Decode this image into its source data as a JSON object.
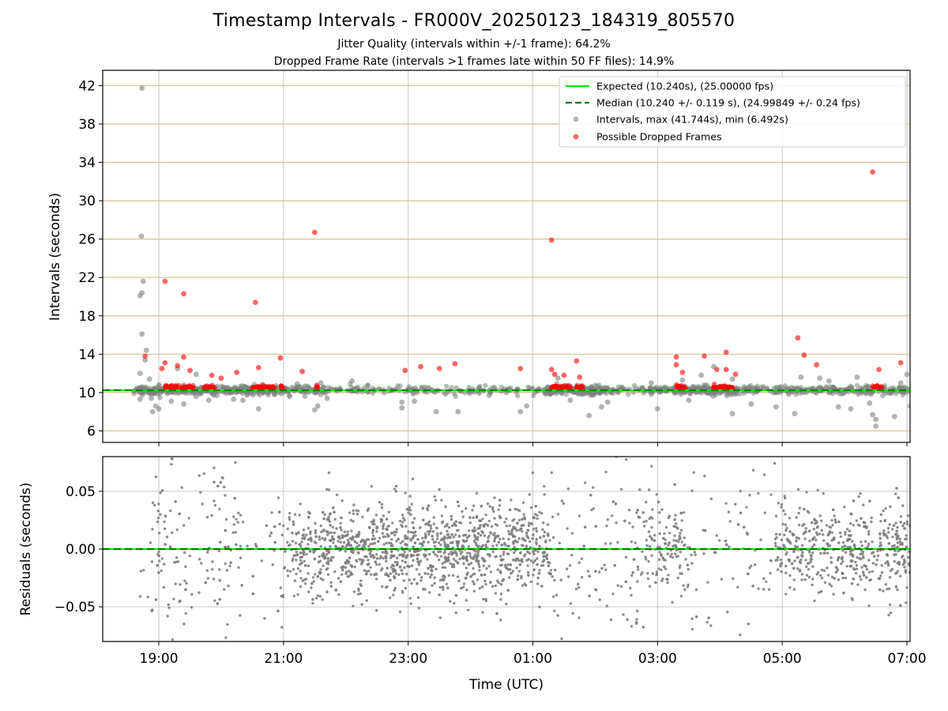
{
  "title": "Timestamp Intervals - FR000V_20250123_184319_805570",
  "subtitle1": "Jitter Quality (intervals within +/-1 frame): 64.2%",
  "subtitle2": "Dropped Frame Rate (intervals >1 frames late within 50 FF files): 14.9%",
  "colors": {
    "expected": "#00ee00",
    "median": "#008000",
    "intervals": "#808080",
    "dropped": "#ff0000",
    "hgrid_top": "#d4c38a",
    "grid": "#c8c8c8"
  },
  "chart_data": [
    {
      "type": "scatter",
      "ylabel": "Intervals (seconds)",
      "xlabel": "",
      "ylim": [
        4.8,
        43.6
      ],
      "xlim_hours": [
        18.1,
        31.05
      ],
      "yticks": [
        6,
        10,
        14,
        18,
        22,
        26,
        30,
        34,
        38,
        42
      ],
      "grid": true,
      "legend_position": "top-right",
      "legend": [
        "Expected (10.240s), (25.00000 fps)",
        "Median (10.240 +/- 0.119 s), (24.99849 +/- 0.24 fps)",
        "Intervals, max (41.744s), min (6.492s)",
        "Possible Dropped Frames"
      ],
      "expected_line": 10.24,
      "median_line": 10.24,
      "series": [
        {
          "name": "Intervals, max (41.744s), min (6.492s)",
          "points": [
            [
              18.73,
              41.74
            ],
            [
              18.72,
              26.3
            ],
            [
              18.7,
              20.1
            ],
            [
              18.73,
              20.4
            ],
            [
              18.75,
              21.6
            ],
            [
              18.73,
              16.1
            ],
            [
              18.8,
              14.4
            ],
            [
              18.78,
              13.4
            ],
            [
              18.7,
              12.0
            ],
            [
              18.85,
              11.4
            ],
            [
              18.9,
              8.0
            ],
            [
              18.95,
              8.6
            ],
            [
              19.0,
              8.3
            ],
            [
              18.88,
              9.4
            ],
            [
              18.7,
              9.3
            ],
            [
              19.2,
              9.1
            ],
            [
              19.4,
              8.8
            ],
            [
              19.6,
              9.6
            ],
            [
              19.8,
              9.2
            ],
            [
              20.2,
              9.3
            ],
            [
              20.35,
              9.2
            ],
            [
              20.6,
              8.3
            ],
            [
              20.85,
              9.8
            ],
            [
              21.1,
              9.6
            ],
            [
              21.22,
              10.9
            ],
            [
              21.5,
              8.2
            ],
            [
              21.55,
              8.6
            ],
            [
              21.6,
              11.0
            ],
            [
              21.7,
              9.4
            ],
            [
              22.1,
              11.2
            ],
            [
              22.9,
              8.4
            ],
            [
              22.9,
              9.0
            ],
            [
              23.1,
              9.1
            ],
            [
              23.45,
              8.0
            ],
            [
              23.8,
              8.0
            ],
            [
              24.3,
              9.7
            ],
            [
              24.8,
              8.0
            ],
            [
              24.9,
              8.6
            ],
            [
              25.4,
              11.5
            ],
            [
              25.6,
              9.2
            ],
            [
              25.9,
              7.6
            ],
            [
              26.1,
              8.5
            ],
            [
              26.2,
              9.0
            ],
            [
              26.9,
              11.0
            ],
            [
              27.0,
              8.3
            ],
            [
              27.5,
              9.2
            ],
            [
              27.9,
              12.7
            ],
            [
              28.2,
              7.8
            ],
            [
              28.5,
              8.8
            ],
            [
              28.9,
              8.5
            ],
            [
              29.2,
              7.8
            ],
            [
              29.6,
              11.5
            ],
            [
              29.9,
              8.5
            ],
            [
              30.1,
              8.3
            ],
            [
              30.4,
              8.9
            ],
            [
              30.45,
              7.7
            ],
            [
              30.5,
              6.5
            ],
            [
              30.5,
              7.2
            ],
            [
              30.8,
              7.5
            ],
            [
              31.0,
              11.9
            ],
            [
              31.05,
              8.6
            ],
            [
              30.9,
              11.0
            ],
            [
              30.2,
              11.6
            ],
            [
              29.75,
              11.2
            ],
            [
              29.3,
              11.6
            ],
            [
              28.2,
              11.4
            ],
            [
              27.7,
              11.8
            ],
            [
              27.4,
              11.3
            ],
            [
              19.3,
              12.5
            ],
            [
              19.6,
              11.9
            ]
          ]
        },
        {
          "name": "Possible Dropped Frames",
          "points": [
            [
              18.78,
              13.8
            ],
            [
              19.1,
              21.6
            ],
            [
              19.05,
              12.5
            ],
            [
              19.1,
              13.1
            ],
            [
              19.3,
              12.8
            ],
            [
              19.4,
              20.3
            ],
            [
              19.4,
              13.7
            ],
            [
              19.5,
              12.3
            ],
            [
              19.85,
              11.8
            ],
            [
              20.0,
              11.5
            ],
            [
              20.25,
              12.1
            ],
            [
              20.55,
              19.4
            ],
            [
              20.6,
              12.6
            ],
            [
              20.95,
              13.6
            ],
            [
              21.3,
              12.2
            ],
            [
              21.5,
              26.7
            ],
            [
              22.95,
              12.3
            ],
            [
              23.2,
              12.7
            ],
            [
              23.5,
              12.5
            ],
            [
              23.75,
              13.0
            ],
            [
              24.8,
              12.5
            ],
            [
              25.3,
              25.9
            ],
            [
              25.3,
              12.4
            ],
            [
              25.35,
              11.9
            ],
            [
              25.5,
              11.8
            ],
            [
              25.7,
              13.3
            ],
            [
              25.75,
              11.6
            ],
            [
              27.3,
              13.7
            ],
            [
              27.3,
              12.9
            ],
            [
              27.4,
              12.1
            ],
            [
              27.75,
              13.8
            ],
            [
              27.95,
              12.4
            ],
            [
              28.1,
              14.2
            ],
            [
              28.1,
              12.4
            ],
            [
              28.25,
              11.9
            ],
            [
              29.25,
              15.7
            ],
            [
              29.35,
              13.9
            ],
            [
              29.55,
              12.9
            ],
            [
              30.45,
              33.0
            ],
            [
              30.55,
              12.4
            ],
            [
              30.9,
              13.1
            ]
          ]
        }
      ]
    },
    {
      "type": "scatter",
      "ylabel": "Residuals (seconds)",
      "xlabel": "Time (UTC)",
      "ylim": [
        -0.08,
        0.08
      ],
      "yticks": [
        0.05,
        0.0,
        -0.05
      ],
      "ytick_labels": [
        "0.05",
        "0.00",
        "−0.05"
      ],
      "xticks_hours": [
        19,
        21,
        23,
        25,
        27,
        29,
        31
      ],
      "xtick_labels": [
        "19:00",
        "21:00",
        "23:00",
        "01:00",
        "03:00",
        "05:00",
        "07:00"
      ],
      "grid": true,
      "expected_line": 0.0,
      "median_line": 0.0,
      "series": [
        {
          "name": "",
          "generated": "dense residual cloud, approx 2500 points, sd about 0.02 s",
          "density_profile": [
            [
              18.7,
              0.2
            ],
            [
              19.0,
              0.5
            ],
            [
              20.0,
              0.6
            ],
            [
              20.7,
              0.3
            ],
            [
              20.9,
              0.35
            ],
            [
              21.2,
              1.2
            ],
            [
              22.0,
              1.6
            ],
            [
              23.5,
              1.7
            ],
            [
              25.0,
              1.6
            ],
            [
              25.4,
              0.4
            ],
            [
              26.5,
              0.3
            ],
            [
              26.9,
              1.0
            ],
            [
              27.4,
              1.1
            ],
            [
              27.6,
              0.25
            ],
            [
              28.8,
              0.3
            ],
            [
              29.0,
              1.3
            ],
            [
              30.5,
              1.3
            ],
            [
              31.05,
              1.2
            ]
          ]
        }
      ]
    }
  ]
}
